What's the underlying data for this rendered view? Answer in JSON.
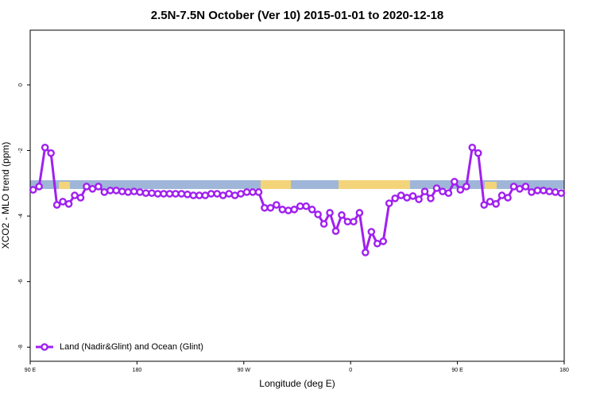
{
  "chart_data": {
    "type": "line",
    "title": "2.5N-7.5N October (Ver 10)   2015-01-01 to 2020-12-18",
    "xlabel": "Longitude (deg E)",
    "ylabel": "XCO2 - MLO trend (ppm)",
    "xlim": [
      90,
      540
    ],
    "ylim": [
      -8.43,
      1.67
    ],
    "xticks": [
      {
        "value": 90,
        "label": "90 E"
      },
      180,
      {
        "value": 270,
        "label": "90 W"
      },
      {
        "value": 360,
        "label": "0"
      },
      {
        "value": 450,
        "label": "90 E"
      },
      {
        "value": 540,
        "label": "180"
      }
    ],
    "yticks": [
      0,
      -2,
      -4,
      -6,
      -8
    ],
    "legend": "bottom-left",
    "x": [
      92.5,
      97.5,
      102.5,
      107.5,
      112.5,
      117.5,
      122.5,
      127.5,
      132.5,
      137.5,
      142.5,
      147.5,
      152.5,
      157.5,
      162.5,
      167.5,
      172.5,
      177.5,
      182.5,
      187.5,
      192.5,
      197.5,
      202.5,
      207.5,
      212.5,
      217.5,
      222.5,
      227.5,
      232.5,
      237.5,
      242.5,
      247.5,
      252.5,
      257.5,
      262.5,
      267.5,
      272.5,
      277.5,
      282.5,
      287.5,
      292.5,
      297.5,
      302.5,
      307.5,
      312.5,
      317.5,
      322.5,
      327.5,
      332.5,
      337.5,
      342.5,
      347.5,
      352.5,
      357.5,
      362.5,
      367.5,
      372.5,
      377.5,
      382.5,
      387.5,
      392.5,
      397.5,
      402.5,
      407.5,
      412.5,
      417.5,
      422.5,
      427.5,
      432.5,
      437.5,
      442.5,
      447.5,
      452.5,
      457.5,
      462.5,
      467.5,
      472.5,
      477.5,
      482.5,
      487.5,
      492.5,
      497.5,
      502.5,
      507.5,
      512.5,
      517.5,
      522.5,
      527.5,
      532.5,
      537.5
    ],
    "series": [
      {
        "name": "Land (Nadir&Glint) and Ocean (Glint)",
        "color": "#a020f0",
        "values": [
          -3.2,
          -3.1,
          -1.91,
          -2.08,
          -3.66,
          -3.56,
          -3.63,
          -3.37,
          -3.44,
          -3.1,
          -3.17,
          -3.1,
          -3.27,
          -3.22,
          -3.22,
          -3.25,
          -3.27,
          -3.25,
          -3.27,
          -3.3,
          -3.3,
          -3.32,
          -3.32,
          -3.32,
          -3.32,
          -3.32,
          -3.34,
          -3.37,
          -3.37,
          -3.37,
          -3.32,
          -3.32,
          -3.37,
          -3.32,
          -3.37,
          -3.32,
          -3.27,
          -3.27,
          -3.27,
          -3.75,
          -3.75,
          -3.66,
          -3.8,
          -3.83,
          -3.8,
          -3.7,
          -3.7,
          -3.8,
          -3.95,
          -4.24,
          -3.9,
          -4.46,
          -3.97,
          -4.17,
          -4.17,
          -3.9,
          -5.11,
          -4.48,
          -4.84,
          -4.77,
          -3.61,
          -3.46,
          -3.37,
          -3.44,
          -3.39,
          -3.49,
          -3.25,
          -3.46,
          -3.15,
          -3.25,
          -3.3,
          -2.95,
          -3.2,
          -3.1,
          -1.91,
          -2.08,
          -3.66,
          -3.56,
          -3.63,
          -3.37,
          -3.44,
          -3.1,
          -3.17,
          -3.1,
          -3.27,
          -3.22,
          -3.22,
          -3.25,
          -3.27,
          -3.3
        ]
      }
    ]
  }
}
